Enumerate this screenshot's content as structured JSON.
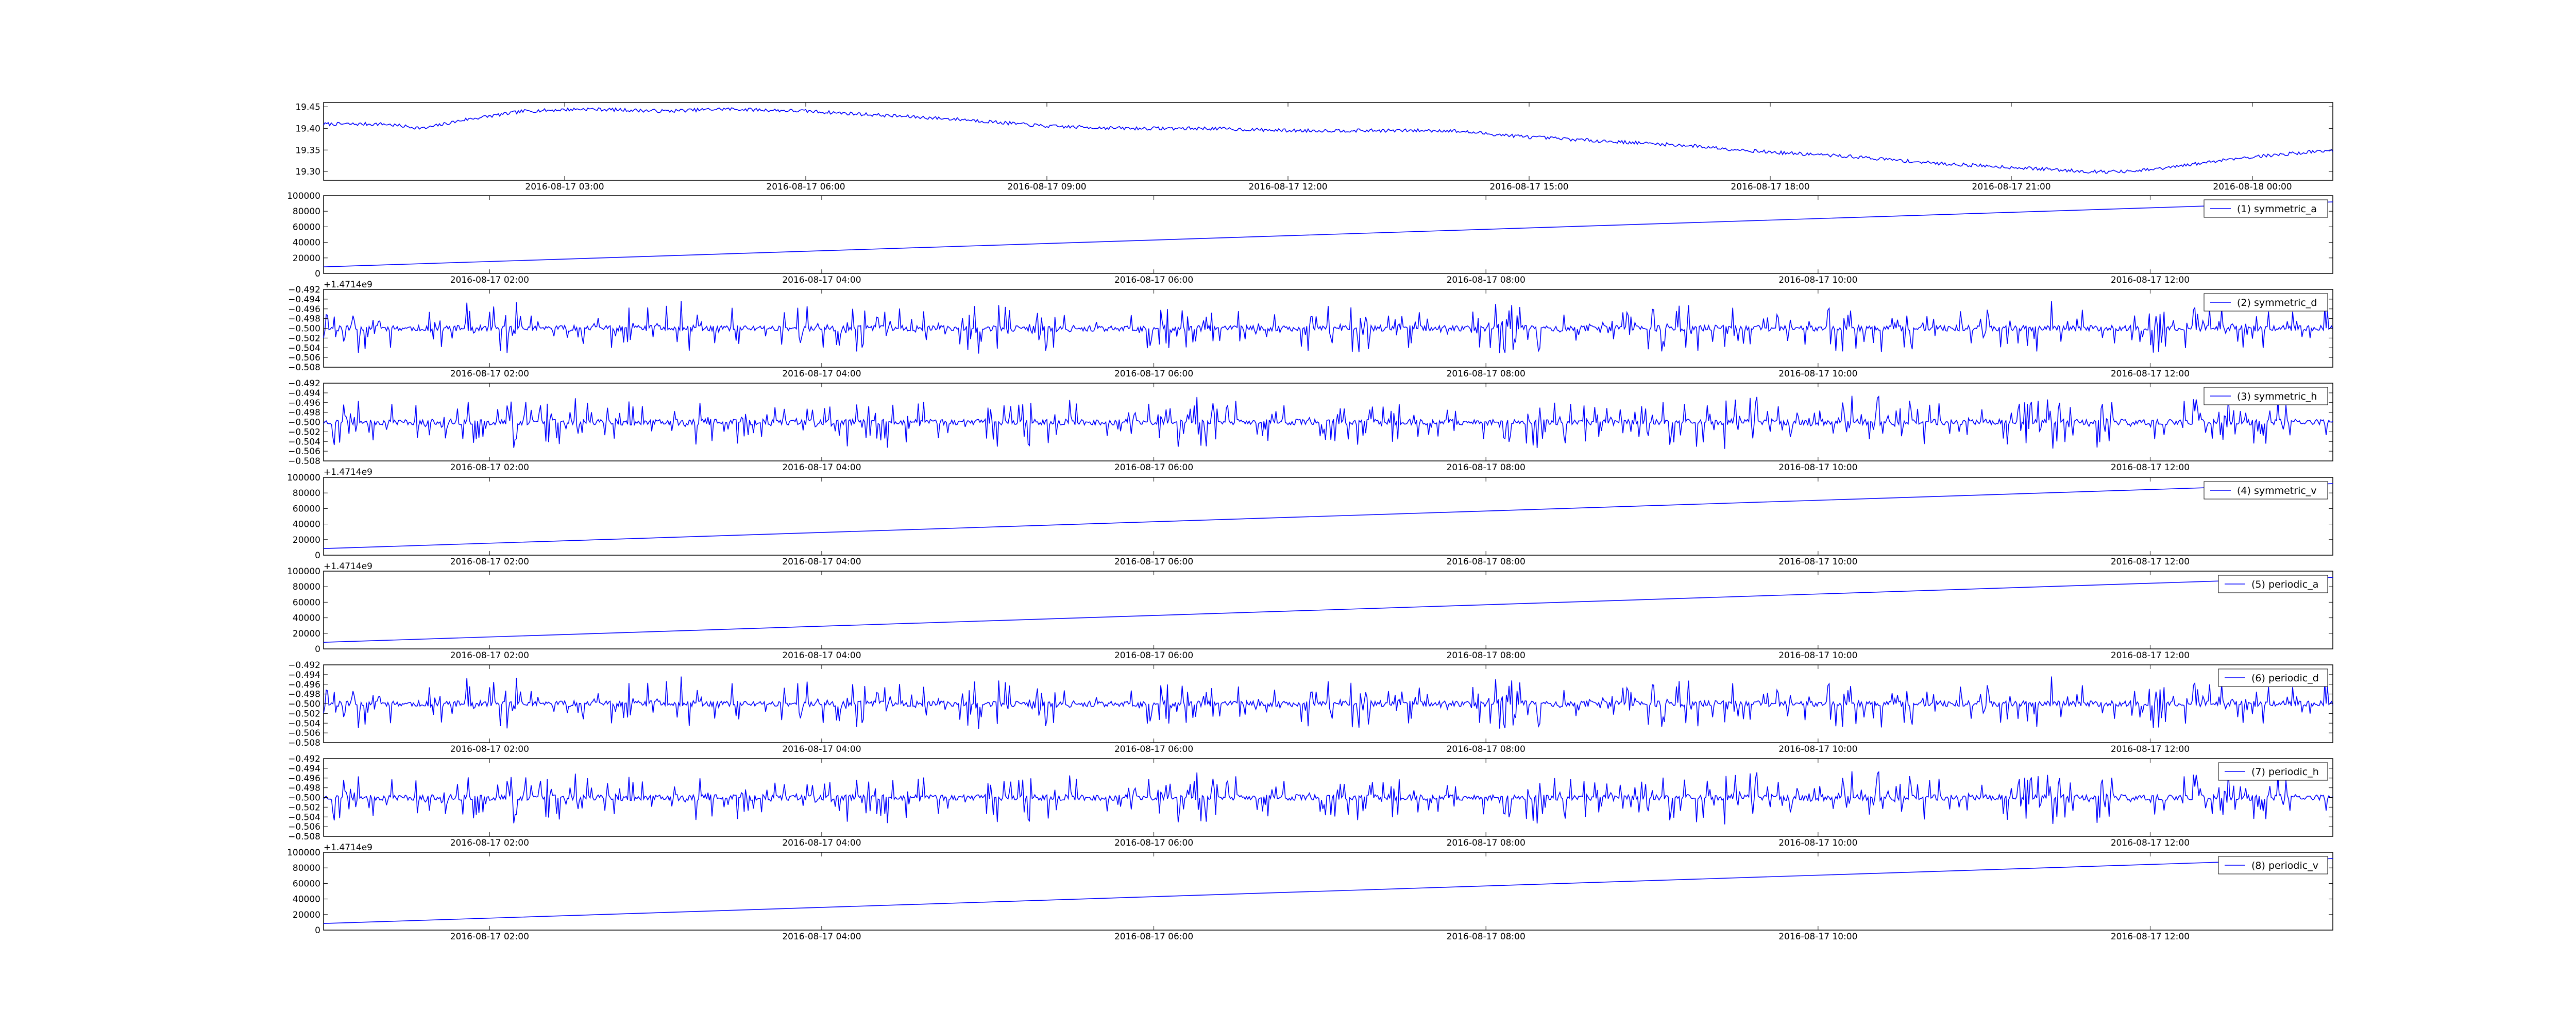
{
  "colors": {
    "line": "#0000ff",
    "axes": "#000000",
    "background": "#ffffff"
  },
  "chart_data": [
    {
      "id": "panel-0",
      "type": "line",
      "x_kind": "datetime",
      "xlim": [
        "2016-08-17 00:00",
        "2016-08-18 01:00"
      ],
      "xticks": [
        "2016-08-17 03:00",
        "2016-08-17 06:00",
        "2016-08-17 09:00",
        "2016-08-17 12:00",
        "2016-08-17 15:00",
        "2016-08-17 18:00",
        "2016-08-17 21:00",
        "2016-08-18 00:00"
      ],
      "ylim": [
        19.28,
        19.46
      ],
      "yticks": [
        "19.30",
        "19.35",
        "19.40",
        "19.45"
      ],
      "y_tick_values": [
        19.3,
        19.35,
        19.4,
        19.45
      ],
      "series": [
        {
          "style": "noisy",
          "x_start": "2016-08-17 00:00",
          "x_end": "2016-08-18 01:00",
          "noise": 0.004,
          "trend": [
            [
              0,
              19.41
            ],
            [
              0.03,
              19.41
            ],
            [
              0.05,
              19.4
            ],
            [
              0.07,
              19.42
            ],
            [
              0.1,
              19.44
            ],
            [
              0.13,
              19.445
            ],
            [
              0.17,
              19.44
            ],
            [
              0.2,
              19.445
            ],
            [
              0.24,
              19.44
            ],
            [
              0.28,
              19.43
            ],
            [
              0.32,
              19.42
            ],
            [
              0.36,
              19.405
            ],
            [
              0.4,
              19.4
            ],
            [
              0.44,
              19.4
            ],
            [
              0.48,
              19.395
            ],
            [
              0.52,
              19.395
            ],
            [
              0.56,
              19.395
            ],
            [
              0.6,
              19.38
            ],
            [
              0.64,
              19.37
            ],
            [
              0.68,
              19.36
            ],
            [
              0.72,
              19.345
            ],
            [
              0.76,
              19.335
            ],
            [
              0.8,
              19.32
            ],
            [
              0.84,
              19.31
            ],
            [
              0.88,
              19.3
            ],
            [
              0.9,
              19.3
            ],
            [
              0.92,
              19.31
            ],
            [
              0.95,
              19.33
            ],
            [
              1.0,
              19.35
            ]
          ]
        }
      ]
    },
    {
      "id": "panel-1",
      "type": "line",
      "x_kind": "datetime",
      "offset_label": "+1.4714e9",
      "xlim": [
        "2016-08-17 01:00",
        "2016-08-17 13:06"
      ],
      "xticks": [
        "2016-08-17 02:00",
        "2016-08-17 04:00",
        "2016-08-17 06:00",
        "2016-08-17 08:00",
        "2016-08-17 10:00",
        "2016-08-17 12:00"
      ],
      "ylim": [
        0,
        100000
      ],
      "yticks": [
        "0",
        "20000",
        "40000",
        "60000",
        "80000",
        "100000"
      ],
      "y_tick_values": [
        0,
        20000,
        40000,
        60000,
        80000,
        100000
      ],
      "legend": {
        "location": "upper right",
        "entries": [
          "(1) symmetric_a"
        ]
      },
      "series": [
        {
          "name": "(1) symmetric_a",
          "style": "linear",
          "x_start": "2016-08-17 01:00",
          "x_end": "2016-08-17 13:06",
          "y": [
            8500,
            92000
          ]
        }
      ]
    },
    {
      "id": "panel-2",
      "type": "line",
      "x_kind": "datetime",
      "xlim": [
        "2016-08-17 01:00",
        "2016-08-17 13:06"
      ],
      "xticks": [
        "2016-08-17 02:00",
        "2016-08-17 04:00",
        "2016-08-17 06:00",
        "2016-08-17 08:00",
        "2016-08-17 10:00",
        "2016-08-17 12:00"
      ],
      "ylim": [
        -0.508,
        -0.492
      ],
      "yticks": [
        "−0.492",
        "−0.494",
        "−0.496",
        "−0.498",
        "−0.500",
        "−0.502",
        "−0.504",
        "−0.506",
        "−0.508"
      ],
      "y_tick_values": [
        -0.492,
        -0.494,
        -0.496,
        -0.498,
        -0.5,
        -0.502,
        -0.504,
        -0.506,
        -0.508
      ],
      "legend": {
        "location": "upper right",
        "entries": [
          "(2) symmetric_d"
        ]
      },
      "series": [
        {
          "name": "(2) symmetric_d",
          "style": "spiky",
          "x_start": "2016-08-17 01:00",
          "x_end": "2016-08-17 13:06",
          "baseline": -0.5,
          "spike": 0.0055,
          "seed": 11
        }
      ]
    },
    {
      "id": "panel-3",
      "type": "line",
      "x_kind": "datetime",
      "offset_label": "+1.4714e9",
      "xlim": [
        "2016-08-17 01:00",
        "2016-08-17 13:06"
      ],
      "xticks": [
        "2016-08-17 02:00",
        "2016-08-17 04:00",
        "2016-08-17 06:00",
        "2016-08-17 08:00",
        "2016-08-17 10:00",
        "2016-08-17 12:00"
      ],
      "ylim": [
        -0.508,
        -0.492
      ],
      "yticks": [
        "−0.492",
        "−0.494",
        "−0.496",
        "−0.498",
        "−0.500",
        "−0.502",
        "−0.504",
        "−0.506",
        "−0.508"
      ],
      "y_tick_values": [
        -0.492,
        -0.494,
        -0.496,
        -0.498,
        -0.5,
        -0.502,
        -0.504,
        -0.506,
        -0.508
      ],
      "legend": {
        "location": "upper right",
        "entries": [
          "(3) symmetric_h"
        ]
      },
      "series": [
        {
          "name": "(3) symmetric_h",
          "style": "spiky",
          "x_start": "2016-08-17 01:00",
          "x_end": "2016-08-17 13:06",
          "baseline": -0.5,
          "spike": 0.0055,
          "seed": 23
        }
      ]
    },
    {
      "id": "panel-4",
      "type": "line",
      "x_kind": "datetime",
      "offset_label": "+1.4714e9",
      "xlim": [
        "2016-08-17 01:00",
        "2016-08-17 13:06"
      ],
      "xticks": [
        "2016-08-17 02:00",
        "2016-08-17 04:00",
        "2016-08-17 06:00",
        "2016-08-17 08:00",
        "2016-08-17 10:00",
        "2016-08-17 12:00"
      ],
      "ylim": [
        0,
        100000
      ],
      "yticks": [
        "0",
        "20000",
        "40000",
        "60000",
        "80000",
        "100000"
      ],
      "y_tick_values": [
        0,
        20000,
        40000,
        60000,
        80000,
        100000
      ],
      "legend": {
        "location": "upper right",
        "entries": [
          "(4) symmetric_v"
        ]
      },
      "series": [
        {
          "name": "(4) symmetric_v",
          "style": "linear",
          "x_start": "2016-08-17 01:00",
          "x_end": "2016-08-17 13:06",
          "y": [
            8500,
            92000
          ]
        }
      ]
    },
    {
      "id": "panel-5",
      "type": "line",
      "x_kind": "datetime",
      "xlim": [
        "2016-08-17 01:00",
        "2016-08-17 13:06"
      ],
      "xticks": [
        "2016-08-17 02:00",
        "2016-08-17 04:00",
        "2016-08-17 06:00",
        "2016-08-17 08:00",
        "2016-08-17 10:00",
        "2016-08-17 12:00"
      ],
      "ylim": [
        0,
        100000
      ],
      "yticks": [
        "0",
        "20000",
        "40000",
        "60000",
        "80000",
        "100000"
      ],
      "y_tick_values": [
        0,
        20000,
        40000,
        60000,
        80000,
        100000
      ],
      "legend": {
        "location": "upper right",
        "entries": [
          "(5) periodic_a"
        ]
      },
      "series": [
        {
          "name": "(5) periodic_a",
          "style": "linear",
          "x_start": "2016-08-17 01:00",
          "x_end": "2016-08-17 13:06",
          "y": [
            8500,
            92000
          ]
        }
      ]
    },
    {
      "id": "panel-6",
      "type": "line",
      "x_kind": "datetime",
      "xlim": [
        "2016-08-17 01:00",
        "2016-08-17 13:06"
      ],
      "xticks": [
        "2016-08-17 02:00",
        "2016-08-17 04:00",
        "2016-08-17 06:00",
        "2016-08-17 08:00",
        "2016-08-17 10:00",
        "2016-08-17 12:00"
      ],
      "ylim": [
        -0.508,
        -0.492
      ],
      "yticks": [
        "−0.492",
        "−0.494",
        "−0.496",
        "−0.498",
        "−0.500",
        "−0.502",
        "−0.504",
        "−0.506",
        "−0.508"
      ],
      "y_tick_values": [
        -0.492,
        -0.494,
        -0.496,
        -0.498,
        -0.5,
        -0.502,
        -0.504,
        -0.506,
        -0.508
      ],
      "legend": {
        "location": "upper right",
        "entries": [
          "(6) periodic_d"
        ]
      },
      "series": [
        {
          "name": "(6) periodic_d",
          "style": "spiky",
          "x_start": "2016-08-17 01:00",
          "x_end": "2016-08-17 13:06",
          "baseline": -0.5,
          "spike": 0.0055,
          "seed": 11
        }
      ]
    },
    {
      "id": "panel-7",
      "type": "line",
      "x_kind": "datetime",
      "offset_label": "+1.4714e9",
      "xlim": [
        "2016-08-17 01:00",
        "2016-08-17 13:06"
      ],
      "xticks": [
        "2016-08-17 02:00",
        "2016-08-17 04:00",
        "2016-08-17 06:00",
        "2016-08-17 08:00",
        "2016-08-17 10:00",
        "2016-08-17 12:00"
      ],
      "ylim": [
        -0.508,
        -0.492
      ],
      "yticks": [
        "−0.492",
        "−0.494",
        "−0.496",
        "−0.498",
        "−0.500",
        "−0.502",
        "−0.504",
        "−0.506",
        "−0.508"
      ],
      "y_tick_values": [
        -0.492,
        -0.494,
        -0.496,
        -0.498,
        -0.5,
        -0.502,
        -0.504,
        -0.506,
        -0.508
      ],
      "legend": {
        "location": "upper right",
        "entries": [
          "(7) periodic_h"
        ]
      },
      "series": [
        {
          "name": "(7) periodic_h",
          "style": "spiky",
          "x_start": "2016-08-17 01:00",
          "x_end": "2016-08-17 13:06",
          "baseline": -0.5,
          "spike": 0.0055,
          "seed": 23
        }
      ]
    },
    {
      "id": "panel-8",
      "type": "line",
      "x_kind": "datetime",
      "xlim": [
        "2016-08-17 01:00",
        "2016-08-17 13:06"
      ],
      "xticks": [
        "2016-08-17 02:00",
        "2016-08-17 04:00",
        "2016-08-17 06:00",
        "2016-08-17 08:00",
        "2016-08-17 10:00",
        "2016-08-17 12:00"
      ],
      "ylim": [
        0,
        100000
      ],
      "yticks": [
        "0",
        "20000",
        "40000",
        "60000",
        "80000",
        "100000"
      ],
      "y_tick_values": [
        0,
        20000,
        40000,
        60000,
        80000,
        100000
      ],
      "legend": {
        "location": "upper right",
        "entries": [
          "(8) periodic_v"
        ]
      },
      "series": [
        {
          "name": "(8) periodic_v",
          "style": "linear",
          "x_start": "2016-08-17 01:00",
          "x_end": "2016-08-17 13:06",
          "y": [
            8500,
            92000
          ]
        }
      ]
    }
  ]
}
